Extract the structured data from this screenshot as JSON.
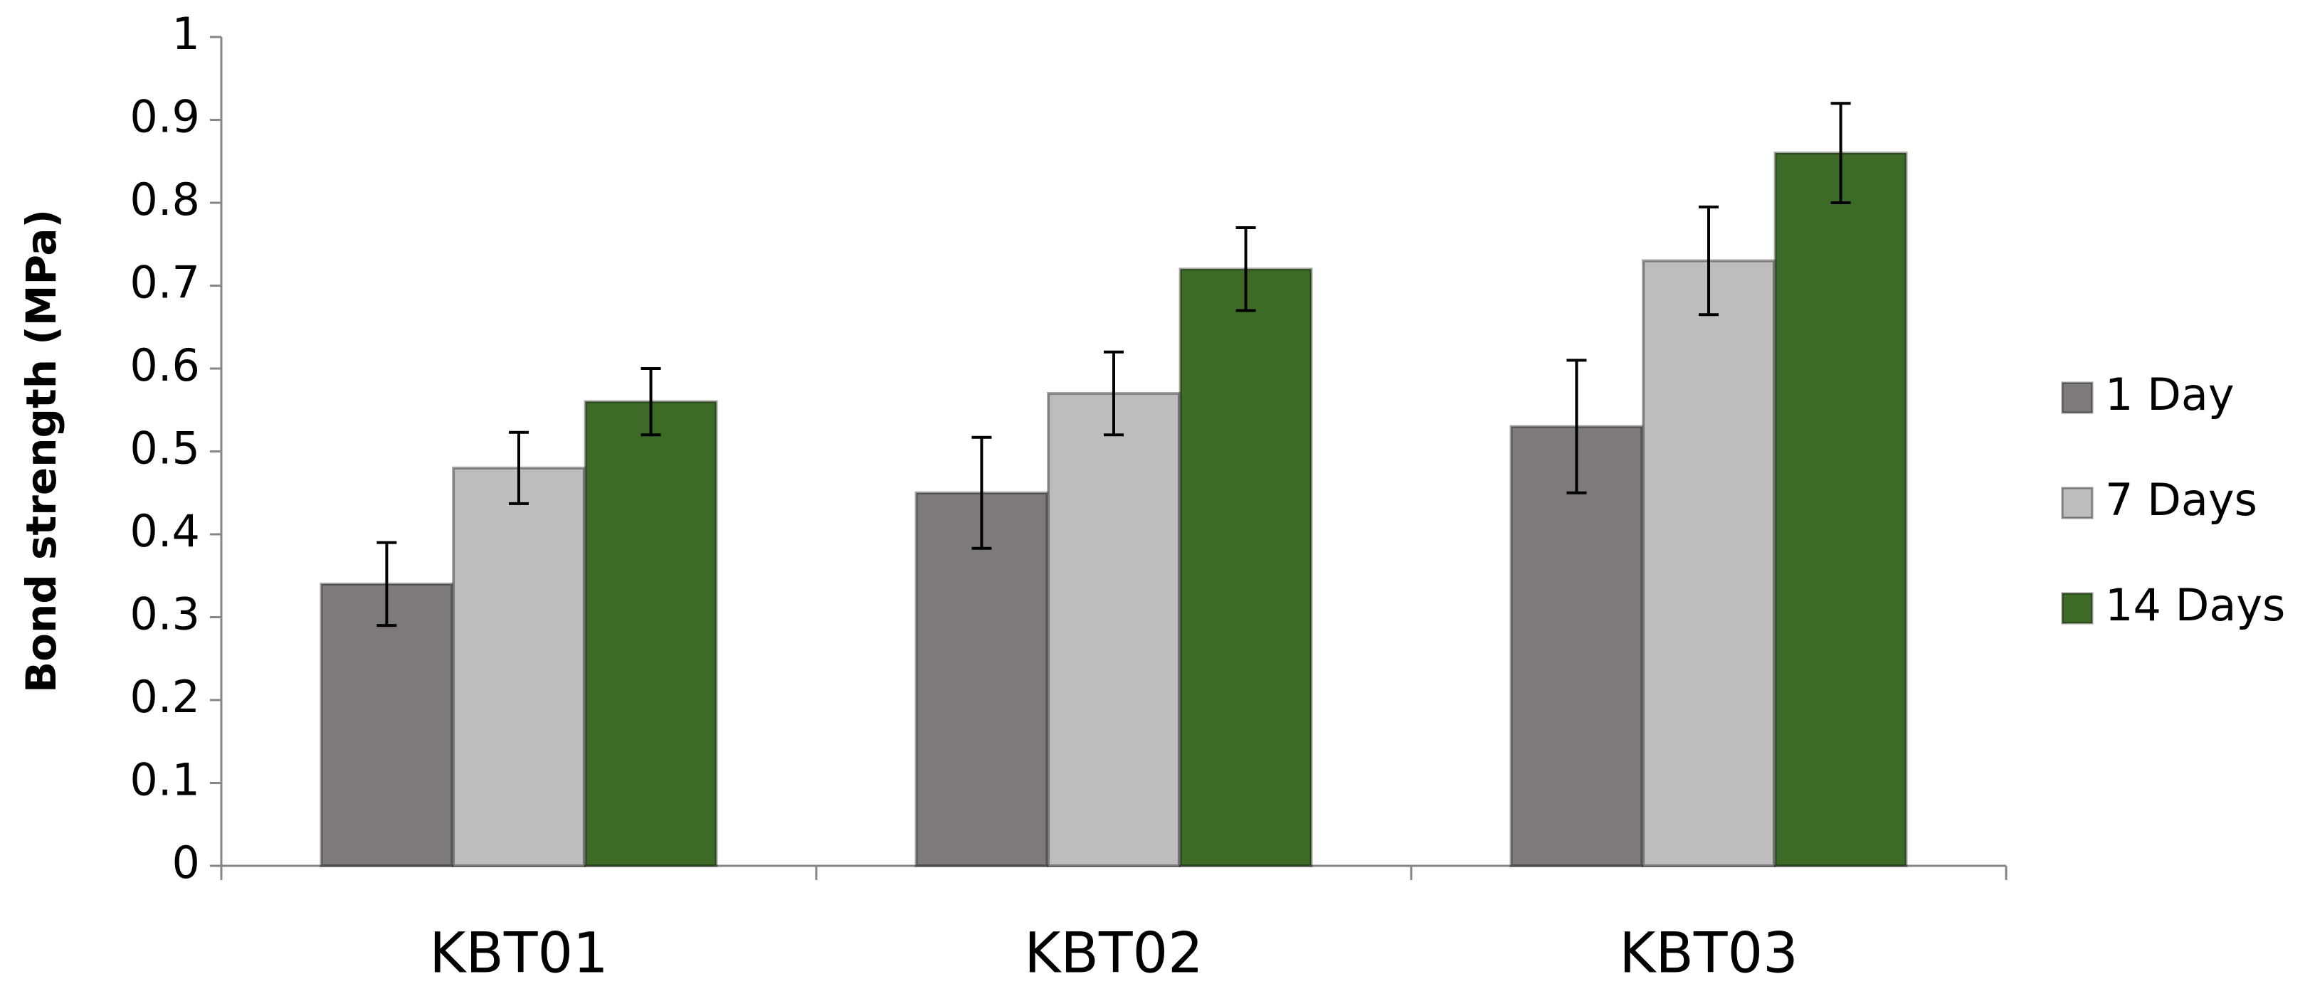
{
  "chart_data": {
    "type": "bar",
    "y_label": "Bond strength (MPa)",
    "categories": [
      "KBT01",
      "KBT02",
      "KBT03"
    ],
    "series": [
      {
        "name": "1 Day",
        "color": "#7f7a7a",
        "values": [
          0.34,
          0.45,
          0.53
        ],
        "errors": [
          0.05,
          0.067,
          0.08
        ]
      },
      {
        "name": "7 Days",
        "color": "#bdbdbd",
        "values": [
          0.48,
          0.57,
          0.73
        ],
        "errors": [
          0.043,
          0.05,
          0.065
        ]
      },
      {
        "name": "14 Days",
        "color": "#3d6b27",
        "values": [
          0.56,
          0.72,
          0.86
        ],
        "errors": [
          0.04,
          0.05,
          0.06
        ]
      }
    ],
    "ylim": [
      0,
      1
    ],
    "yticks": [
      0,
      0.1,
      0.2,
      0.3,
      0.4,
      0.5,
      0.6,
      0.7,
      0.8,
      0.9,
      1
    ],
    "grid": false,
    "legend": "right"
  }
}
